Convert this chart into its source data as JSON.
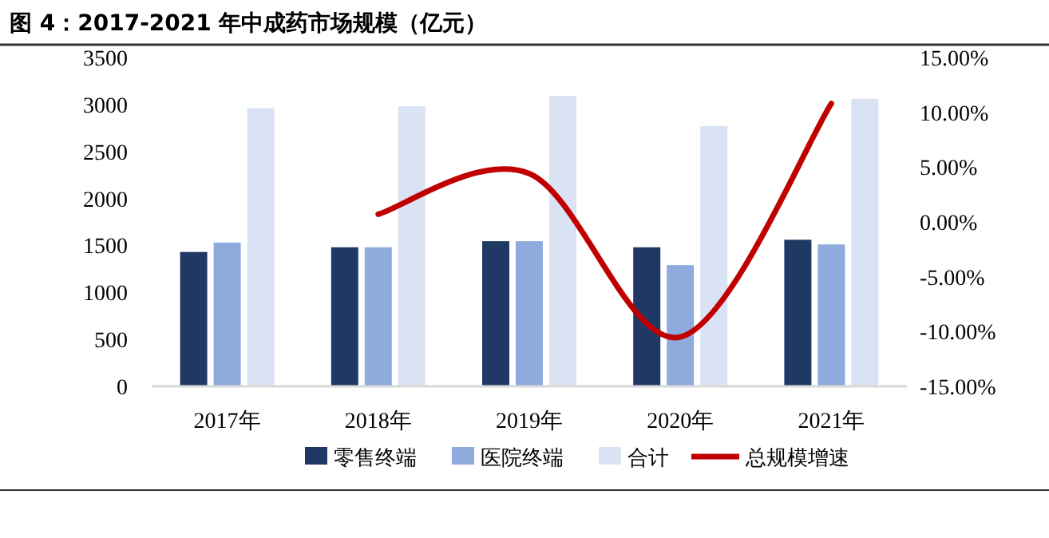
{
  "chart_data": {
    "type": "bar",
    "title": "图 4：2017-2021 年中成药市场规模（亿元）",
    "categories": [
      "2017年",
      "2018年",
      "2019年",
      "2020年",
      "2021年"
    ],
    "series": [
      {
        "name": "零售终端",
        "color": "#203864",
        "values": [
          1430,
          1480,
          1545,
          1480,
          1560
        ]
      },
      {
        "name": "医院终端",
        "color": "#8faadc",
        "values": [
          1530,
          1480,
          1545,
          1290,
          1510
        ]
      },
      {
        "name": "合计",
        "color": "#dae3f3",
        "values": [
          2960,
          2980,
          3090,
          2770,
          3060
        ]
      },
      {
        "name": "总规模增速",
        "type": "line",
        "axis": "y2",
        "color": "#c00000",
        "values": [
          null,
          0.7,
          4.4,
          -10.5,
          10.8
        ]
      }
    ],
    "ylim": [
      0,
      3500
    ],
    "yticks": [
      0,
      500,
      1000,
      1500,
      2000,
      2500,
      3000,
      3500
    ],
    "y2lim": [
      -15,
      15
    ],
    "y2ticks": [
      {
        "value": -15,
        "label": "-15.00%"
      },
      {
        "value": -10,
        "label": "-10.00%"
      },
      {
        "value": -5,
        "label": "-5.00%"
      },
      {
        "value": 0,
        "label": "0.00%"
      },
      {
        "value": 5,
        "label": "5.00%"
      },
      {
        "value": 10,
        "label": "10.00%"
      },
      {
        "value": 15,
        "label": "15.00%"
      }
    ],
    "grid": false,
    "legend": "bottom"
  }
}
